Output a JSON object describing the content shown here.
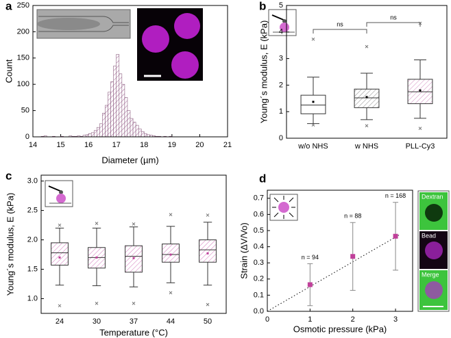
{
  "chart_data": [
    {
      "type": "histogram",
      "panel": "a",
      "xlabel": "Diameter (µm)",
      "ylabel": "Count",
      "color": "#8a5c7e",
      "bins": [
        14.0,
        14.1,
        14.2,
        14.3,
        14.4,
        14.5,
        14.6,
        14.7,
        14.8,
        14.9,
        15.0,
        15.1,
        15.2,
        15.3,
        15.4,
        15.5,
        15.6,
        15.7,
        15.8,
        15.9,
        16.0,
        16.1,
        16.2,
        16.3,
        16.4,
        16.5,
        16.6,
        16.7,
        16.8,
        16.9,
        17.0,
        17.1,
        17.2,
        17.3,
        17.4,
        17.5,
        17.6,
        17.7,
        17.8,
        17.9,
        18.0,
        18.1,
        18.2,
        18.3,
        18.4,
        18.5,
        18.6,
        18.7,
        18.8,
        18.9,
        19.0
      ],
      "counts": [
        0,
        0,
        0,
        1,
        2,
        0,
        0,
        1,
        0,
        0,
        1,
        0,
        0,
        2,
        1,
        1,
        2,
        1,
        3,
        4,
        6,
        8,
        12,
        18,
        25,
        45,
        60,
        85,
        105,
        135,
        157,
        120,
        100,
        75,
        50,
        35,
        28,
        22,
        15,
        10,
        6,
        4,
        3,
        2,
        1,
        1,
        0,
        1,
        0,
        1
      ],
      "xlim": [
        14,
        21
      ],
      "xticks": [
        14,
        15,
        16,
        17,
        18,
        19,
        20,
        21
      ],
      "ylim": [
        0,
        250
      ],
      "yticks": [
        0,
        50,
        100,
        150,
        200,
        250
      ]
    },
    {
      "type": "box",
      "panel": "b",
      "ylabel": "Young´s modulus, E (kPa)",
      "categories": [
        "w/o NHS",
        "w NHS",
        "PLL-Cy3"
      ],
      "colors": [
        "#ffffff",
        "#9a9a9a",
        "#d89ac8"
      ],
      "mean_color": "#000000",
      "boxes": [
        {
          "whisker_low": 0.55,
          "q1": 0.92,
          "median": 1.25,
          "q3": 1.62,
          "whisker_high": 2.3,
          "mean": 1.37,
          "outliers": [
            3.73,
            0.5
          ]
        },
        {
          "whisker_low": 0.7,
          "q1": 1.15,
          "median": 1.52,
          "q3": 1.85,
          "whisker_high": 2.45,
          "mean": 1.55,
          "outliers": [
            3.45,
            0.47
          ]
        },
        {
          "whisker_low": 0.75,
          "q1": 1.3,
          "median": 1.75,
          "q3": 2.22,
          "whisker_high": 2.95,
          "mean": 1.8,
          "outliers": [
            4.33,
            0.37
          ]
        }
      ],
      "annotations": [
        "ns",
        "ns"
      ],
      "ylim": [
        0,
        5
      ],
      "yticks": [
        0,
        1,
        2,
        3,
        4,
        5
      ]
    },
    {
      "type": "box",
      "panel": "c",
      "xlabel": "Temperature (°C)",
      "ylabel": "Young´s modulus, E (kPa)",
      "categories": [
        "24",
        "30",
        "37",
        "44",
        "50"
      ],
      "colors": [
        "#d889c4",
        "#d889c4",
        "#d889c4",
        "#d889c4",
        "#d889c4"
      ],
      "mean_color": "#c0409a",
      "boxes": [
        {
          "whisker_low": 1.23,
          "q1": 1.57,
          "median": 1.78,
          "q3": 1.95,
          "whisker_high": 2.2,
          "mean": 1.7,
          "outliers": [
            2.25,
            0.88
          ]
        },
        {
          "whisker_low": 1.22,
          "q1": 1.52,
          "median": 1.7,
          "q3": 1.87,
          "whisker_high": 2.2,
          "mean": 1.7,
          "outliers": [
            2.28,
            0.92
          ]
        },
        {
          "whisker_low": 1.2,
          "q1": 1.45,
          "median": 1.72,
          "q3": 1.9,
          "whisker_high": 2.22,
          "mean": 1.69,
          "outliers": [
            2.27,
            0.92
          ]
        },
        {
          "whisker_low": 1.27,
          "q1": 1.62,
          "median": 1.75,
          "q3": 1.93,
          "whisker_high": 2.23,
          "mean": 1.75,
          "outliers": [
            2.43,
            1.1
          ]
        },
        {
          "whisker_low": 1.23,
          "q1": 1.62,
          "median": 1.83,
          "q3": 2.0,
          "whisker_high": 2.3,
          "mean": 1.77,
          "outliers": [
            2.42,
            0.9
          ]
        }
      ],
      "ylim": [
        0.75,
        3.1
      ],
      "yticks": [
        {
          "value": 1,
          "label": "1.0"
        },
        1.5,
        {
          "value": 2,
          "label": "2.0"
        },
        2.5,
        {
          "value": 3,
          "label": "3.0"
        }
      ]
    },
    {
      "type": "scatter",
      "panel": "d",
      "xlabel": "Osmotic pressure (kPa)",
      "ylabel": "Strain (ΔV/Vo)",
      "color": "#c0409a",
      "x": [
        1,
        2,
        3
      ],
      "values": [
        0.165,
        0.34,
        0.465
      ],
      "errors": [
        0.13,
        0.21,
        0.21
      ],
      "annotations": [
        "n = 94",
        "n = 88",
        "n = 168"
      ],
      "fit_line": {
        "x": [
          0,
          3.1
        ],
        "y": [
          0,
          0.475
        ]
      },
      "image_labels": [
        "Dextran",
        "Bead",
        "Merge"
      ],
      "xlim": [
        0,
        3.4
      ],
      "xticks": [
        0,
        1,
        2,
        3
      ],
      "ylim": [
        0,
        0.75
      ],
      "yticks": [
        {
          "value": 0,
          "label": "0.0"
        },
        0.1,
        0.2,
        0.3,
        0.4,
        0.5,
        0.6,
        0.7
      ]
    }
  ]
}
